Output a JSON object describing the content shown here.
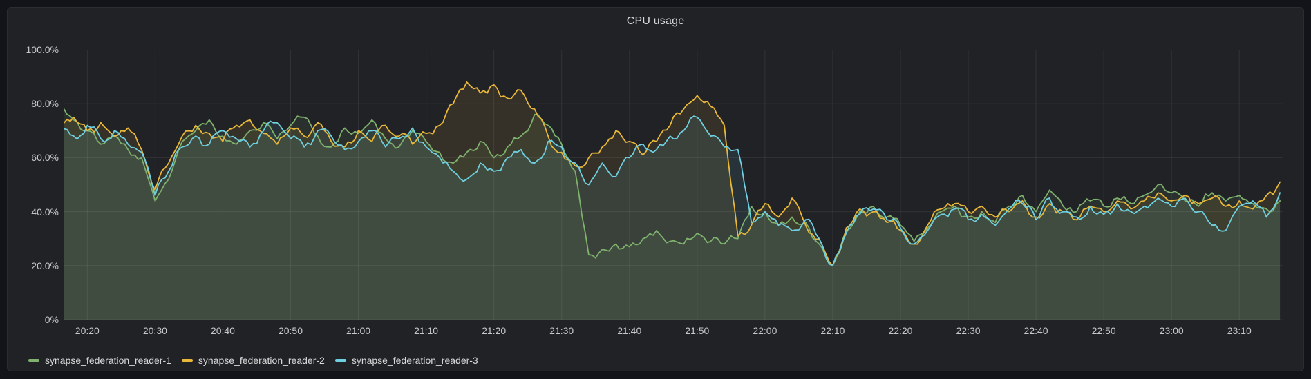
{
  "chart_data": {
    "type": "area",
    "title": "CPU usage",
    "unit": "percent",
    "grid": true,
    "legend_position": "bottom",
    "ylim": [
      0,
      100
    ],
    "y_axis": {
      "ticks": [
        {
          "value": 0,
          "label": "0%"
        },
        {
          "value": 20,
          "label": "20.0%"
        },
        {
          "value": 40,
          "label": "40.0%"
        },
        {
          "value": 60,
          "label": "60.0%"
        },
        {
          "value": 80,
          "label": "80.0%"
        },
        {
          "value": 100,
          "label": "100.0%"
        }
      ]
    },
    "x_axis": {
      "start_minute": 1216.6,
      "end_minute": 1396.4,
      "ticks": [
        {
          "minute": 1220,
          "label": "20:20"
        },
        {
          "minute": 1230,
          "label": "20:30"
        },
        {
          "minute": 1240,
          "label": "20:40"
        },
        {
          "minute": 1250,
          "label": "20:50"
        },
        {
          "minute": 1260,
          "label": "21:00"
        },
        {
          "minute": 1270,
          "label": "21:10"
        },
        {
          "minute": 1280,
          "label": "21:20"
        },
        {
          "minute": 1290,
          "label": "21:30"
        },
        {
          "minute": 1300,
          "label": "21:40"
        },
        {
          "minute": 1310,
          "label": "21:50"
        },
        {
          "minute": 1320,
          "label": "22:00"
        },
        {
          "minute": 1330,
          "label": "22:10"
        },
        {
          "minute": 1340,
          "label": "22:20"
        },
        {
          "minute": 1350,
          "label": "22:30"
        },
        {
          "minute": 1360,
          "label": "22:40"
        },
        {
          "minute": 1370,
          "label": "22:50"
        },
        {
          "minute": 1380,
          "label": "23:00"
        },
        {
          "minute": 1390,
          "label": "23:10"
        }
      ]
    },
    "fill_opacity": 0.1,
    "series": [
      {
        "name": "synapse_federation_reader-1",
        "color": "#7EB26D",
        "start_minute": 1216,
        "step_minutes": 2,
        "values": [
          81,
          74,
          70,
          65,
          68,
          63,
          60,
          44,
          52,
          66,
          70,
          74,
          68,
          65,
          70,
          73,
          67,
          72,
          75,
          68,
          64,
          71,
          69,
          74,
          67,
          64,
          70,
          66,
          62,
          58,
          62,
          66,
          60,
          64,
          68,
          76,
          72,
          65,
          55,
          24,
          26,
          28,
          27,
          30,
          33,
          29,
          28,
          32,
          29,
          28,
          30,
          42,
          40,
          35,
          38,
          36,
          28,
          20,
          33,
          40,
          42,
          38,
          35,
          29,
          34,
          40,
          42,
          38,
          40,
          36,
          42,
          46,
          40,
          48,
          42,
          40,
          44,
          42,
          45,
          43,
          46,
          50,
          47,
          44,
          42,
          47,
          44,
          46,
          43,
          41,
          44
        ]
      },
      {
        "name": "synapse_federation_reader-2",
        "color": "#EAB839",
        "start_minute": 1216,
        "step_minutes": 2,
        "values": [
          72,
          75,
          70,
          73,
          68,
          71,
          63,
          48,
          58,
          68,
          72,
          69,
          66,
          72,
          74,
          69,
          65,
          71,
          68,
          73,
          66,
          64,
          70,
          66,
          72,
          68,
          65,
          69,
          72,
          80,
          88,
          84,
          87,
          82,
          85,
          78,
          68,
          62,
          57,
          60,
          64,
          70,
          66,
          61,
          66,
          72,
          78,
          83,
          79,
          72,
          31,
          35,
          43,
          38,
          45,
          35,
          30,
          20,
          34,
          41,
          40,
          36,
          33,
          28,
          35,
          41,
          43,
          40,
          42,
          38,
          40,
          44,
          38,
          43,
          40,
          37,
          42,
          40,
          44,
          41,
          44,
          47,
          44,
          46,
          43,
          45,
          42,
          44,
          41,
          46,
          51
        ]
      },
      {
        "name": "synapse_federation_reader-3",
        "color": "#6ED0E0",
        "start_minute": 1216,
        "step_minutes": 2,
        "values": [
          70,
          68,
          72,
          67,
          70,
          65,
          62,
          46,
          55,
          64,
          68,
          65,
          70,
          67,
          64,
          70,
          73,
          67,
          64,
          70,
          68,
          63,
          66,
          70,
          64,
          67,
          71,
          64,
          60,
          55,
          52,
          58,
          55,
          60,
          63,
          58,
          66,
          64,
          58,
          50,
          58,
          53,
          60,
          65,
          63,
          68,
          70,
          75,
          68,
          64,
          63,
          36,
          40,
          35,
          33,
          37,
          30,
          20,
          32,
          39,
          41,
          37,
          34,
          28,
          33,
          39,
          41,
          37,
          39,
          35,
          41,
          43,
          37,
          45,
          40,
          38,
          42,
          39,
          43,
          40,
          42,
          45,
          42,
          45,
          40,
          35,
          33,
          42,
          44,
          38,
          47
        ]
      }
    ]
  }
}
